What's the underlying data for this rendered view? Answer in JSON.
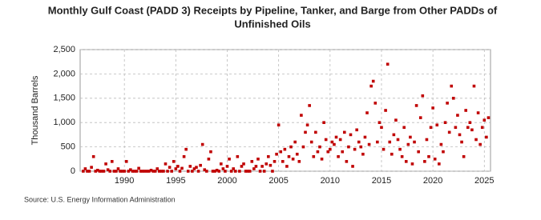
{
  "chart_data": {
    "type": "scatter",
    "title": [
      "Monthly Gulf Coast (PADD 3) Receipts by Pipeline, Tanker, and Barge from Other PADDs of",
      "Unfinished Oils"
    ],
    "y_label": "Thousand Barrels",
    "source": "Source: U.S. Energy Information Administration",
    "color": "#c00000",
    "grid": true,
    "xlim": [
      1985.7,
      2025.6
    ],
    "ylim": [
      0,
      2500
    ],
    "xticks": [
      1990,
      1995,
      2000,
      2005,
      2010,
      2015,
      2020,
      2025
    ],
    "yticks": [
      0,
      500,
      {
        "value": 1000,
        "label": "1,000"
      },
      {
        "value": 1500,
        "label": "1,500"
      },
      {
        "value": 2000,
        "label": "2,000"
      },
      {
        "value": 2500,
        "label": "2,500"
      }
    ],
    "x": [
      1986.0,
      1986.2,
      1986.4,
      1986.6,
      1986.8,
      1987.0,
      1987.2,
      1987.4,
      1987.6,
      1987.8,
      1988.0,
      1988.2,
      1988.4,
      1988.6,
      1988.8,
      1989.0,
      1989.2,
      1989.4,
      1989.6,
      1989.8,
      1990.0,
      1990.2,
      1990.4,
      1990.6,
      1990.8,
      1991.0,
      1991.2,
      1991.4,
      1991.6,
      1991.8,
      1992.0,
      1992.2,
      1992.4,
      1992.6,
      1992.8,
      1993.0,
      1993.2,
      1993.4,
      1993.6,
      1993.8,
      1994.0,
      1994.2,
      1994.4,
      1994.6,
      1994.8,
      1995.0,
      1995.2,
      1995.4,
      1995.6,
      1995.8,
      1996.0,
      1996.2,
      1996.4,
      1996.6,
      1996.8,
      1997.0,
      1997.2,
      1997.4,
      1997.6,
      1997.8,
      1998.0,
      1998.2,
      1998.4,
      1998.6,
      1998.8,
      1999.0,
      1999.2,
      1999.4,
      1999.6,
      1999.8,
      2000.0,
      2000.2,
      2000.4,
      2000.6,
      2000.8,
      2001.0,
      2001.2,
      2001.4,
      2001.6,
      2001.8,
      2002.0,
      2002.2,
      2002.4,
      2002.6,
      2002.8,
      2003.0,
      2003.2,
      2003.4,
      2003.6,
      2003.8,
      2004.0,
      2004.2,
      2004.4,
      2004.6,
      2004.8,
      2005.0,
      2005.2,
      2005.4,
      2005.6,
      2005.8,
      2006.0,
      2006.2,
      2006.4,
      2006.6,
      2006.8,
      2007.0,
      2007.2,
      2007.4,
      2007.6,
      2007.8,
      2008.0,
      2008.2,
      2008.4,
      2008.6,
      2008.8,
      2009.0,
      2009.2,
      2009.4,
      2009.6,
      2009.8,
      2010.0,
      2010.2,
      2010.4,
      2010.6,
      2010.8,
      2011.0,
      2011.2,
      2011.4,
      2011.6,
      2011.8,
      2012.0,
      2012.2,
      2012.4,
      2012.6,
      2012.8,
      2013.0,
      2013.2,
      2013.4,
      2013.6,
      2013.8,
      2014.0,
      2014.2,
      2014.4,
      2014.6,
      2014.8,
      2015.0,
      2015.2,
      2015.4,
      2015.6,
      2015.8,
      2016.0,
      2016.2,
      2016.4,
      2016.6,
      2016.8,
      2017.0,
      2017.2,
      2017.4,
      2017.6,
      2017.8,
      2018.0,
      2018.2,
      2018.4,
      2018.6,
      2018.8,
      2019.0,
      2019.2,
      2019.4,
      2019.6,
      2019.8,
      2020.0,
      2020.2,
      2020.4,
      2020.6,
      2020.8,
      2021.0,
      2021.2,
      2021.4,
      2021.6,
      2021.8,
      2022.0,
      2022.2,
      2022.4,
      2022.6,
      2022.8,
      2023.0,
      2023.2,
      2023.4,
      2023.6,
      2023.8,
      2024.0,
      2024.2,
      2024.4,
      2024.6,
      2024.8,
      2025.0,
      2025.2,
      2025.4
    ],
    "values": [
      0,
      50,
      0,
      0,
      80,
      300,
      0,
      20,
      0,
      0,
      0,
      150,
      30,
      0,
      200,
      0,
      0,
      50,
      0,
      0,
      0,
      200,
      0,
      30,
      0,
      0,
      0,
      60,
      0,
      0,
      0,
      0,
      0,
      20,
      0,
      0,
      50,
      0,
      0,
      0,
      150,
      0,
      80,
      0,
      200,
      50,
      100,
      0,
      60,
      300,
      450,
      0,
      100,
      0,
      50,
      80,
      0,
      120,
      550,
      30,
      0,
      250,
      400,
      0,
      0,
      20,
      0,
      150,
      50,
      0,
      100,
      250,
      0,
      50,
      0,
      300,
      0,
      100,
      150,
      0,
      0,
      0,
      200,
      50,
      100,
      250,
      0,
      100,
      0,
      150,
      300,
      120,
      0,
      200,
      350,
      950,
      400,
      200,
      450,
      100,
      300,
      500,
      250,
      600,
      350,
      200,
      1150,
      500,
      800,
      950,
      1350,
      600,
      300,
      800,
      400,
      500,
      250,
      1000,
      650,
      400,
      450,
      600,
      550,
      700,
      300,
      650,
      400,
      800,
      200,
      500,
      750,
      100,
      450,
      850,
      600,
      500,
      350,
      700,
      1200,
      550,
      1750,
      1850,
      1400,
      600,
      1000,
      900,
      450,
      1250,
      2200,
      600,
      350,
      750,
      1050,
      650,
      450,
      300,
      900,
      200,
      550,
      700,
      150,
      600,
      1350,
      400,
      1100,
      1550,
      200,
      650,
      300,
      900,
      1300,
      250,
      950,
      150,
      550,
      400,
      1000,
      1400,
      800,
      1750,
      1500,
      900,
      1150,
      750,
      600,
      300,
      1250,
      900,
      1000,
      850,
      1750,
      650,
      1200,
      550,
      900,
      1050,
      700,
      1100
    ]
  }
}
